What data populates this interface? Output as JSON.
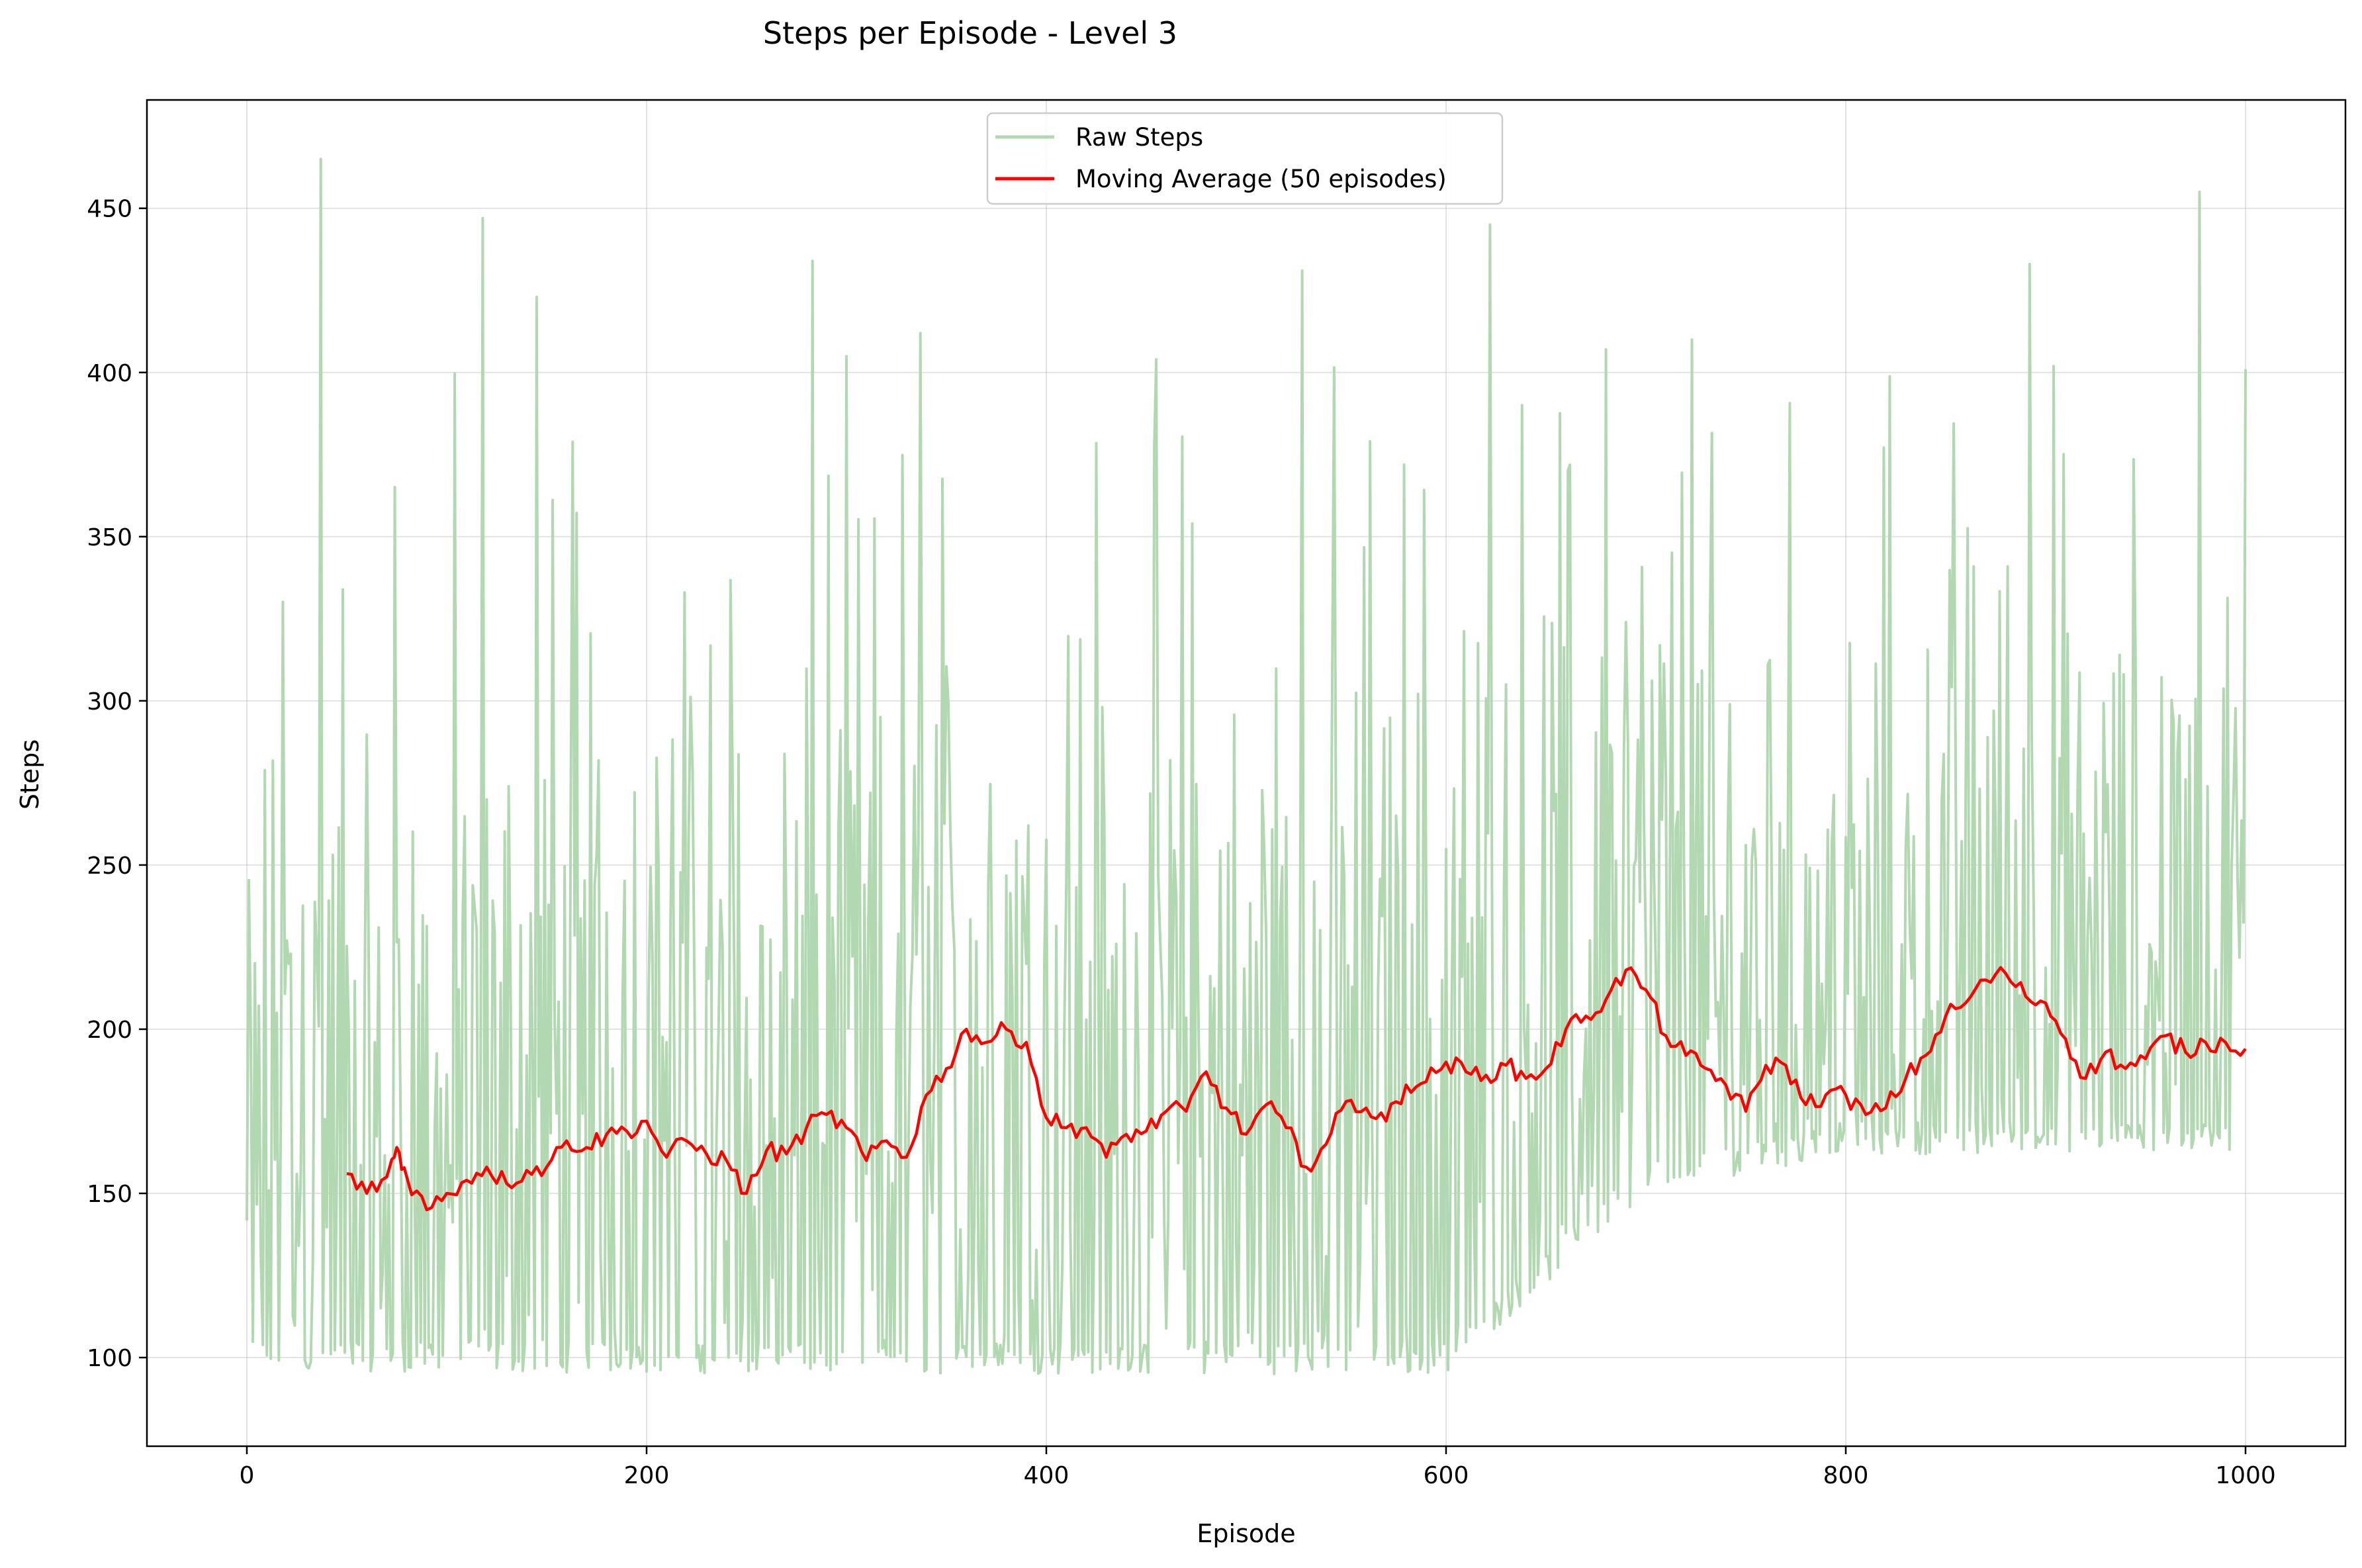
{
  "chart_data": {
    "type": "line",
    "title": "Steps per Episode - Level 3",
    "xlabel": "Episode",
    "ylabel": "Steps",
    "xlim": [
      -50,
      1050
    ],
    "ylim": [
      73,
      483
    ],
    "xticks": [
      0,
      200,
      400,
      600,
      800,
      1000
    ],
    "yticks": [
      100,
      150,
      200,
      250,
      300,
      350,
      400,
      450
    ],
    "grid": true,
    "legend_position": "top-center",
    "series": [
      {
        "name": "Raw Steps",
        "color": "#b2d8b2",
        "generated_from_envelope": true,
        "episodes": [
          0,
          1000
        ],
        "base_low": [
          [
            0,
            96
          ],
          [
            300,
            95
          ],
          [
            600,
            95
          ],
          [
            700,
            150
          ],
          [
            800,
            162
          ],
          [
            1000,
            162
          ]
        ],
        "peaks": [
          [
            37,
            465
          ],
          [
            118,
            447
          ],
          [
            145,
            423
          ],
          [
            283,
            434
          ],
          [
            337,
            412
          ],
          [
            528,
            431
          ],
          [
            622,
            445
          ],
          [
            680,
            407
          ],
          [
            723,
            410
          ],
          [
            892,
            433
          ],
          [
            977,
            455
          ],
          [
            1000,
            401
          ]
        ]
      },
      {
        "name": "Moving Average (50 episodes)",
        "color": "#ff0000",
        "x": [
          50,
          60,
          70,
          75,
          80,
          90,
          100,
          110,
          120,
          130,
          140,
          150,
          160,
          170,
          180,
          190,
          200,
          210,
          220,
          230,
          240,
          250,
          260,
          270,
          280,
          290,
          300,
          310,
          320,
          330,
          340,
          350,
          360,
          370,
          380,
          390,
          400,
          410,
          420,
          430,
          440,
          450,
          460,
          470,
          480,
          490,
          500,
          510,
          520,
          530,
          540,
          550,
          560,
          570,
          580,
          590,
          600,
          610,
          620,
          630,
          640,
          650,
          660,
          670,
          680,
          690,
          700,
          710,
          720,
          730,
          740,
          750,
          760,
          770,
          780,
          790,
          800,
          810,
          820,
          830,
          840,
          850,
          860,
          870,
          880,
          890,
          900,
          910,
          920,
          930,
          940,
          950,
          960,
          970,
          980,
          990,
          1000
        ],
        "values": [
          156,
          150,
          155,
          164,
          155,
          145,
          150,
          154,
          158,
          153,
          157,
          158,
          166,
          164,
          168,
          169,
          172,
          161,
          166,
          162,
          160,
          150,
          163,
          162,
          170,
          174,
          170,
          160,
          166,
          161,
          180,
          188,
          200,
          196,
          200,
          196,
          173,
          170,
          170,
          161,
          168,
          169,
          175,
          175,
          187,
          176,
          168,
          177,
          170,
          158,
          165,
          178,
          176,
          172,
          183,
          184,
          190,
          187,
          186,
          189,
          185,
          188,
          200,
          204,
          209,
          218,
          212,
          198,
          192,
          188,
          183,
          175,
          189,
          189,
          177,
          180,
          180,
          174,
          176,
          185,
          192,
          204,
          208,
          215,
          217,
          210,
          208,
          197,
          185,
          193,
          188,
          191,
          198,
          193,
          196,
          196,
          194
        ]
      }
    ]
  }
}
